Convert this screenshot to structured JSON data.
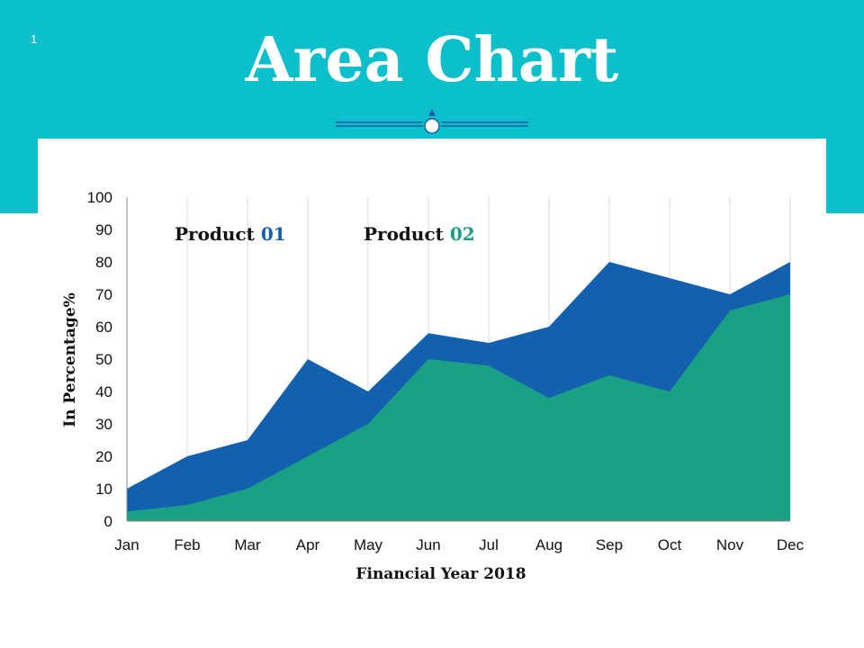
{
  "slide": {
    "number": "1",
    "title": "Area Chart"
  },
  "colors": {
    "header": "#0bbfcb",
    "product_01": "#1360ae",
    "product_02": "#1aa085",
    "divider": "#1a5fa8"
  },
  "legend": {
    "product_01_label": "Product ",
    "product_01_num": "01",
    "product_02_label": "Product ",
    "product_02_num": "02"
  },
  "chart_data": {
    "type": "area",
    "categories": [
      "Jan",
      "Feb",
      "Mar",
      "Apr",
      "May",
      "Jun",
      "Jul",
      "Aug",
      "Sep",
      "Oct",
      "Nov",
      "Dec"
    ],
    "series": [
      {
        "name": "Product 01",
        "values": [
          10,
          20,
          25,
          50,
          40,
          58,
          55,
          60,
          80,
          75,
          70,
          80
        ]
      },
      {
        "name": "Product 02",
        "values": [
          3,
          5,
          10,
          20,
          30,
          50,
          48,
          38,
          45,
          40,
          65,
          70
        ]
      }
    ],
    "yticks": [
      0,
      10,
      20,
      30,
      40,
      50,
      60,
      70,
      80,
      90,
      100
    ],
    "ylim": [
      0,
      100
    ],
    "xlabel": "Financial Year 2018",
    "ylabel": "In Percentage%",
    "grid": "vertical"
  }
}
